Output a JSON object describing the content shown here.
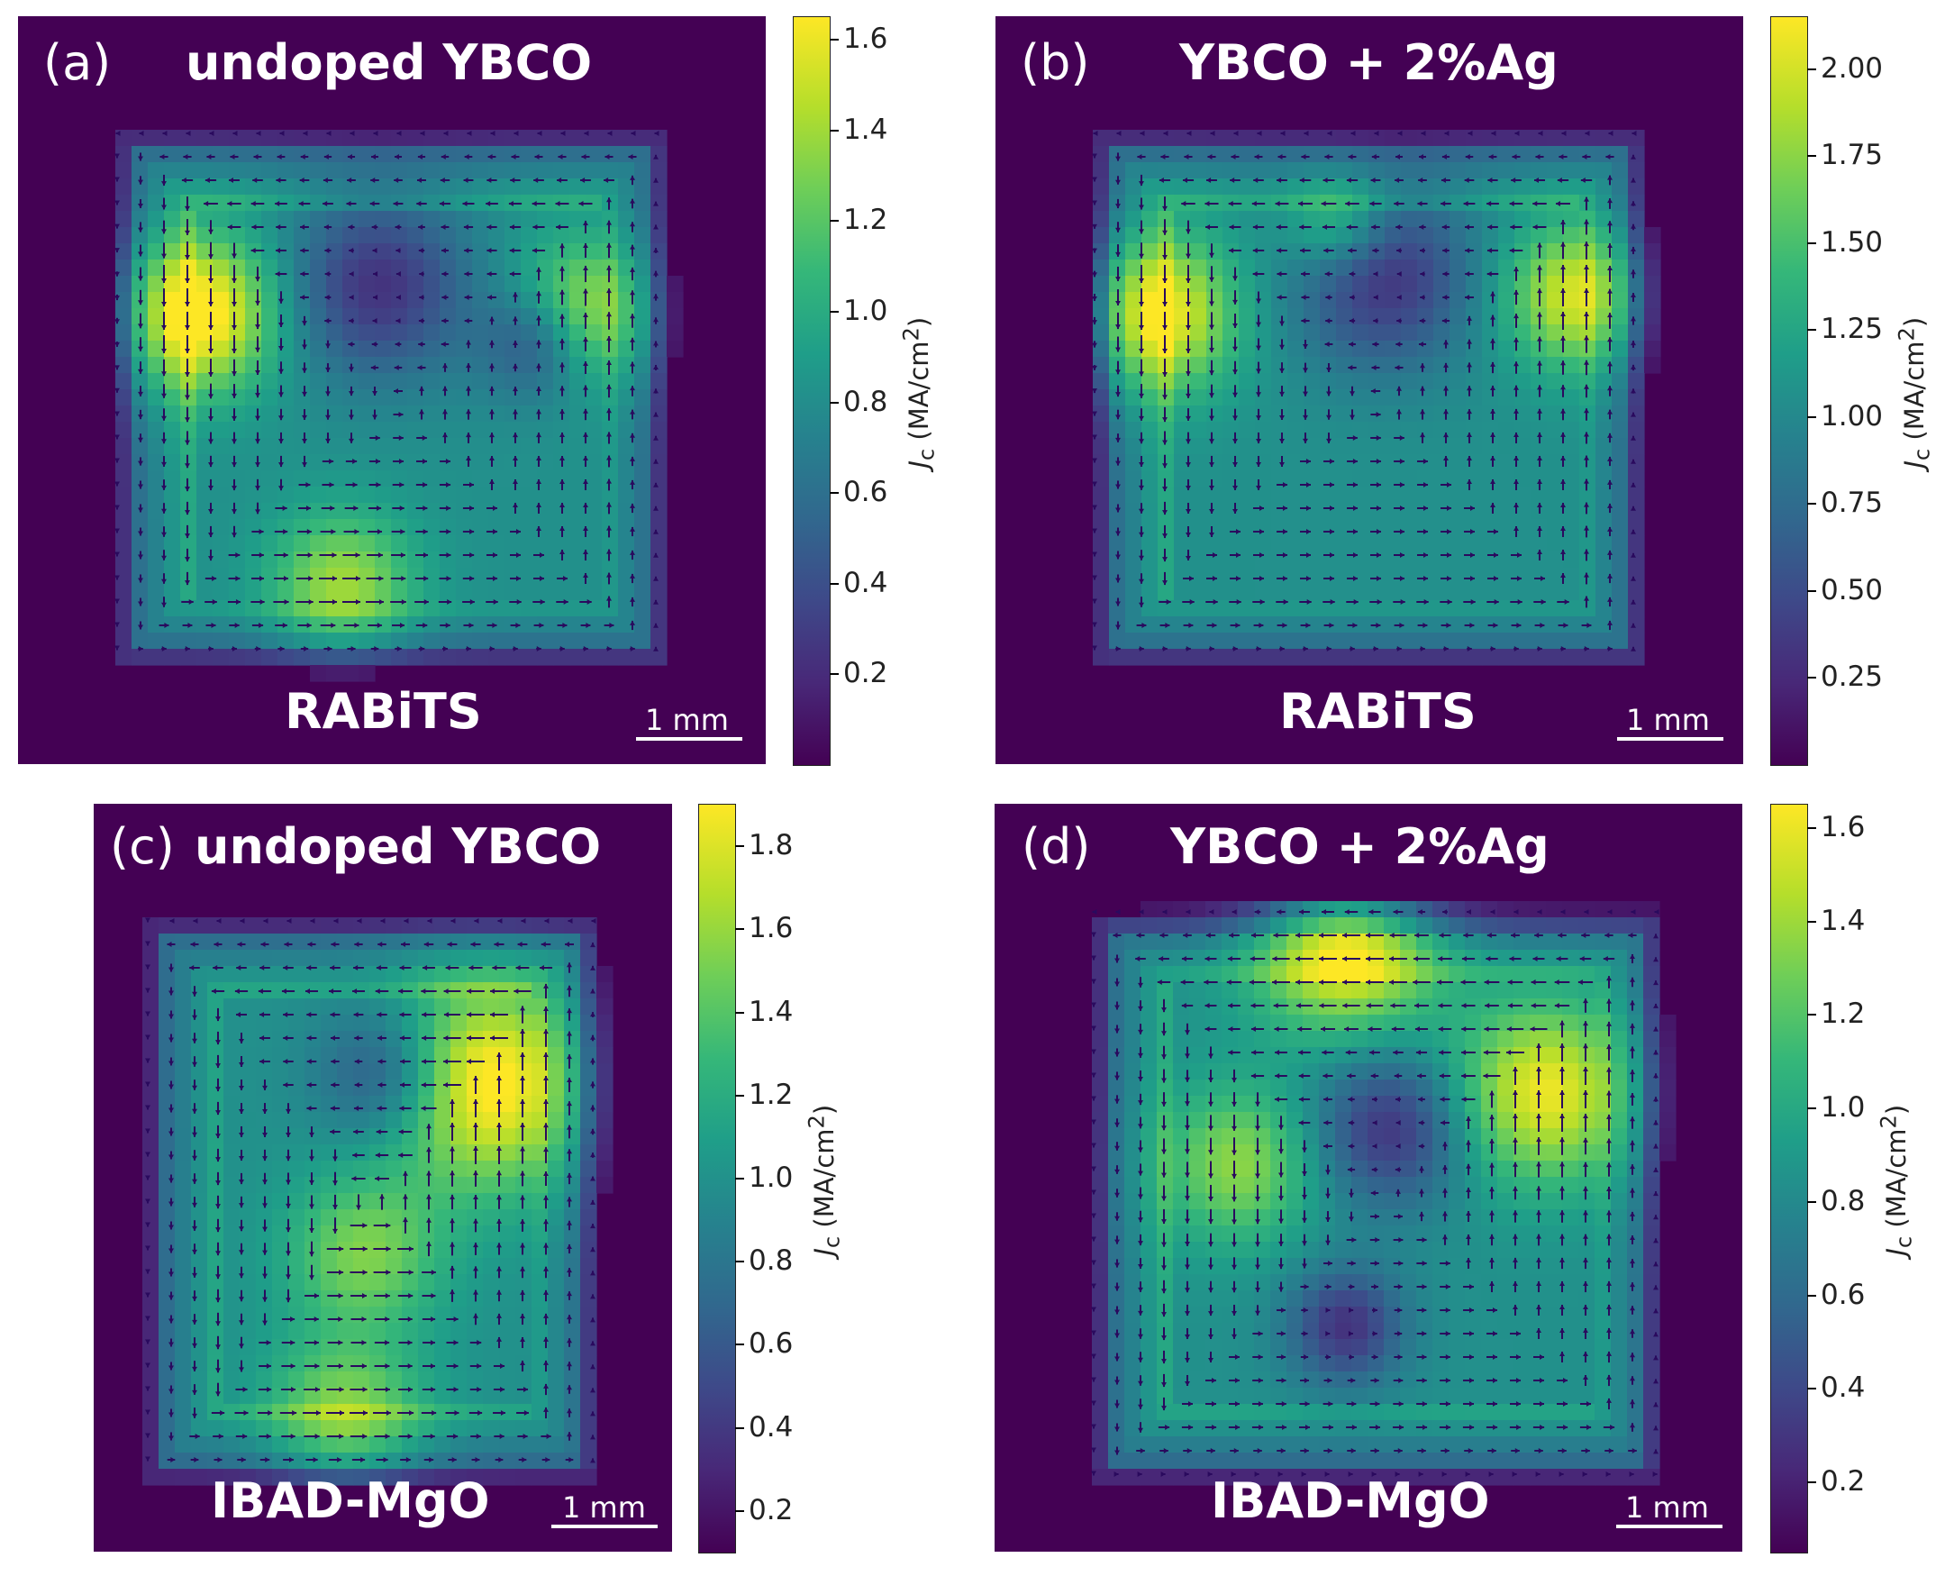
{
  "chart_data": [
    {
      "type": "heatmap",
      "panel_label": "(a)",
      "title": "undoped YBCO",
      "substrate": "RABiTS",
      "scale_bar": "1 mm",
      "colorbar": {
        "label": "J_c (MA/cm^2)",
        "label_main": "J",
        "label_sub": "c",
        "label_unit": " (MA/cm",
        "label_sup": "2",
        "label_close": ")",
        "range": [
          0.0,
          1.65
        ],
        "ticks": [
          0.2,
          0.4,
          0.6,
          0.8,
          1.0,
          1.2,
          1.4,
          1.6
        ],
        "tick_labels": [
          "0.2",
          "0.4",
          "0.6",
          "0.8",
          "1.0",
          "1.2",
          "1.4",
          "1.6"
        ]
      },
      "colormap": "viridis",
      "overlay": "current-density vector field (quiver)"
    },
    {
      "type": "heatmap",
      "panel_label": "(b)",
      "title": "YBCO + 2%Ag",
      "substrate": "RABiTS",
      "scale_bar": "1 mm",
      "colorbar": {
        "label": "J_c (MA/cm^2)",
        "label_main": "J",
        "label_sub": "c",
        "label_unit": " (MA/cm",
        "label_sup": "2",
        "label_close": ")",
        "range": [
          0.0,
          2.15
        ],
        "ticks": [
          0.25,
          0.5,
          0.75,
          1.0,
          1.25,
          1.5,
          1.75,
          2.0
        ],
        "tick_labels": [
          "0.25",
          "0.50",
          "0.75",
          "1.00",
          "1.25",
          "1.50",
          "1.75",
          "2.00"
        ]
      },
      "colormap": "viridis",
      "overlay": "current-density vector field (quiver)"
    },
    {
      "type": "heatmap",
      "panel_label": "(c)",
      "title": "undoped YBCO",
      "substrate": "IBAD-MgO",
      "scale_bar": "1 mm",
      "colorbar": {
        "label": "J_c (MA/cm^2)",
        "label_main": "J",
        "label_sub": "c",
        "label_unit": " (MA/cm",
        "label_sup": "2",
        "label_close": ")",
        "range": [
          0.1,
          1.9
        ],
        "ticks": [
          0.2,
          0.4,
          0.6,
          0.8,
          1.0,
          1.2,
          1.4,
          1.6,
          1.8
        ],
        "tick_labels": [
          "0.2",
          "0.4",
          "0.6",
          "0.8",
          "1.0",
          "1.2",
          "1.4",
          "1.6",
          "1.8"
        ]
      },
      "colormap": "viridis",
      "overlay": "current-density vector field (quiver)"
    },
    {
      "type": "heatmap",
      "panel_label": "(d)",
      "title": "YBCO + 2%Ag",
      "substrate": "IBAD-MgO",
      "scale_bar": "1 mm",
      "colorbar": {
        "label": "J_c (MA/cm^2)",
        "label_main": "J",
        "label_sub": "c",
        "label_unit": " (MA/cm",
        "label_sup": "2",
        "label_close": ")",
        "range": [
          0.05,
          1.65
        ],
        "ticks": [
          0.2,
          0.4,
          0.6,
          0.8,
          1.0,
          1.2,
          1.4,
          1.6
        ],
        "tick_labels": [
          "0.2",
          "0.4",
          "0.6",
          "0.8",
          "1.0",
          "1.2",
          "1.4",
          "1.6"
        ]
      },
      "colormap": "viridis",
      "overlay": "current-density vector field (quiver)"
    }
  ]
}
